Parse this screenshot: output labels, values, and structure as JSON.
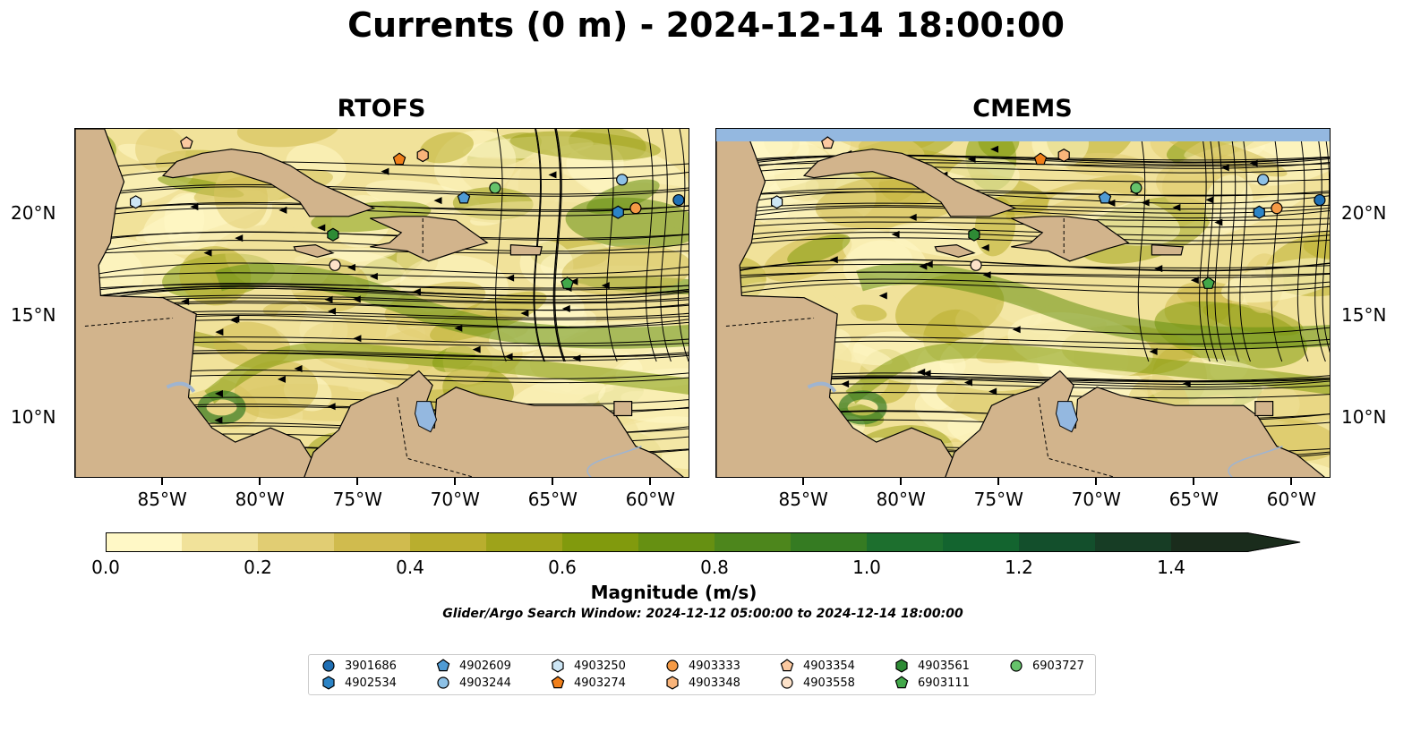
{
  "title": "Currents (0 m) - 2024-12-14 18:00:00",
  "panels": [
    {
      "title": "RTOFS"
    },
    {
      "title": "CMEMS"
    }
  ],
  "x_ticks": [
    "85°W",
    "80°W",
    "75°W",
    "70°W",
    "65°W",
    "60°W"
  ],
  "y_ticks": [
    "20°N",
    "15°N",
    "10°N"
  ],
  "map_extent": {
    "lon": [
      -89.5,
      -58
    ],
    "lat": [
      7,
      24.2
    ]
  },
  "colorbar": {
    "label": "Magnitude (m/s)",
    "ticks": [
      "0.0",
      "0.2",
      "0.4",
      "0.6",
      "0.8",
      "1.0",
      "1.2",
      "1.4"
    ],
    "range": [
      0,
      1.5
    ],
    "extend": "max",
    "colors": [
      "#fff8c6",
      "#f1e29a",
      "#e1cd73",
      "#d0bb4e",
      "#b9ae2e",
      "#9ea31a",
      "#819a0d",
      "#669012",
      "#4d861c",
      "#357b22",
      "#1d6f2e",
      "#13642f",
      "#134f2c",
      "#173d25",
      "#1a2c1c"
    ]
  },
  "subtitle": "Glider/Argo Search Window: 2024-12-12 05:00:00 to 2024-12-14 18:00:00",
  "floats": [
    {
      "id": "3901686",
      "marker": "circle",
      "color": "#1f6fb4",
      "lon": -58.6,
      "lat": 20.7
    },
    {
      "id": "4902534",
      "marker": "hexagon",
      "color": "#2c84c6",
      "lon": -61.7,
      "lat": 20.1
    },
    {
      "id": "4902609",
      "marker": "pentagon",
      "color": "#4f9bd4",
      "lon": -69.6,
      "lat": 20.8
    },
    {
      "id": "4903244",
      "marker": "circle",
      "color": "#8dc1e6",
      "lon": -61.5,
      "lat": 21.7
    },
    {
      "id": "4903250",
      "marker": "hexagon",
      "color": "#cde6f5",
      "lon": -86.4,
      "lat": 20.6
    },
    {
      "id": "4903274",
      "marker": "pentagon",
      "color": "#f07f1a",
      "lon": -72.9,
      "lat": 22.7
    },
    {
      "id": "4903333",
      "marker": "circle",
      "color": "#f59a45",
      "lon": -60.8,
      "lat": 20.3
    },
    {
      "id": "4903348",
      "marker": "hexagon",
      "color": "#f9b47a",
      "lon": -71.7,
      "lat": 22.9
    },
    {
      "id": "4903354",
      "marker": "pentagon",
      "color": "#fcc9a0",
      "lon": -83.8,
      "lat": 23.5
    },
    {
      "id": "4903558",
      "marker": "circle",
      "color": "#fde2c9",
      "lon": -76.2,
      "lat": 17.5
    },
    {
      "id": "4903561",
      "marker": "hexagon",
      "color": "#2e8b35",
      "lon": -76.3,
      "lat": 19.0
    },
    {
      "id": "6903111",
      "marker": "pentagon",
      "color": "#42a84a",
      "lon": -64.3,
      "lat": 16.6
    },
    {
      "id": "6903727",
      "marker": "circle",
      "color": "#66c36b",
      "lon": -68.0,
      "lat": 21.3
    }
  ]
}
